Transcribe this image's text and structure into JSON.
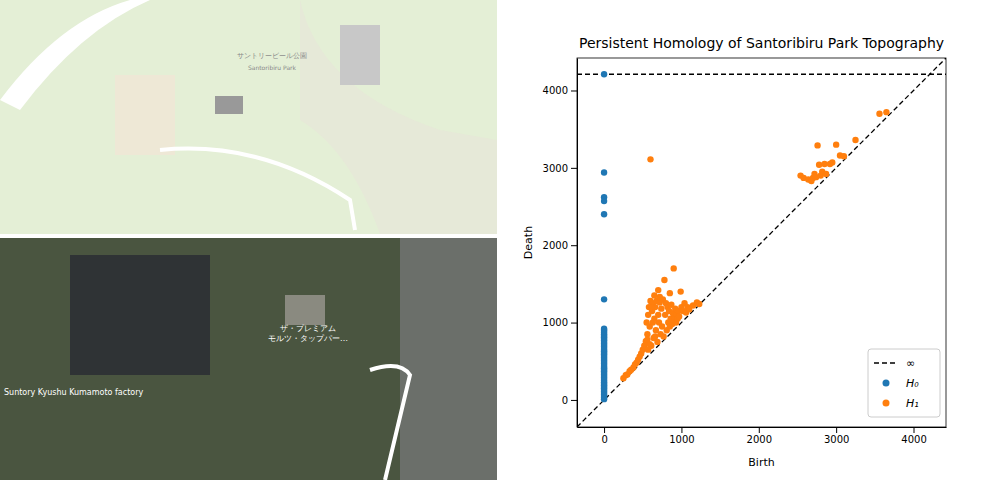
{
  "chart_data": {
    "type": "scatter",
    "title": "Persistent Homology of Santoribiru Park Topography",
    "x_label": "Birth",
    "y_label": "Death",
    "xlim": [
      -350,
      4420
    ],
    "ylim": [
      -350,
      4420
    ],
    "xticks": [
      0,
      1000,
      2000,
      3000,
      4000
    ],
    "yticks": [
      0,
      1000,
      2000,
      3000,
      4000
    ],
    "legend": "lower right",
    "series": [
      {
        "name": "∞",
        "type": "hline",
        "line_style": "dashed",
        "color": "#000000",
        "values": [
          4210
        ]
      },
      {
        "name": "H₀",
        "type": "scatter",
        "color": "#1f77b4",
        "x": [
          0,
          0,
          0,
          0,
          0,
          0,
          0,
          0,
          0,
          0,
          0,
          0,
          0,
          0,
          0,
          0,
          0,
          0,
          0,
          0,
          0,
          0,
          0,
          0,
          0,
          0,
          0,
          0,
          0,
          0,
          0,
          0,
          0,
          0,
          0,
          0,
          0,
          0,
          0,
          0,
          0,
          0,
          0,
          0,
          0,
          0,
          0,
          0,
          0,
          0,
          0,
          0,
          0
        ],
        "values": [
          4210,
          2940,
          2620,
          2570,
          2400,
          1300,
          920,
          905,
          890,
          870,
          850,
          830,
          810,
          790,
          770,
          750,
          730,
          710,
          690,
          670,
          650,
          630,
          610,
          590,
          570,
          550,
          530,
          510,
          490,
          470,
          450,
          430,
          410,
          390,
          370,
          350,
          330,
          310,
          290,
          270,
          250,
          230,
          210,
          190,
          170,
          150,
          130,
          110,
          90,
          70,
          50,
          30,
          10
        ]
      },
      {
        "name": "H₁",
        "type": "scatter",
        "color": "#ff7f0e",
        "x": [
          250,
          280,
          300,
          330,
          350,
          380,
          400,
          420,
          440,
          460,
          480,
          500,
          520,
          540,
          550,
          560,
          570,
          580,
          590,
          600,
          610,
          620,
          630,
          640,
          650,
          660,
          670,
          680,
          690,
          700,
          710,
          720,
          730,
          740,
          750,
          760,
          770,
          780,
          790,
          800,
          810,
          820,
          830,
          840,
          850,
          860,
          870,
          880,
          890,
          900,
          910,
          920,
          930,
          940,
          950,
          960,
          970,
          990,
          1000,
          1020,
          1040,
          1060,
          1080,
          1100,
          1150,
          1200,
          1230,
          600,
          700,
          850,
          650,
          720,
          610,
          630,
          560,
          590,
          570,
          660,
          2540,
          2580,
          2640,
          2680,
          2700,
          2720,
          2740,
          2760,
          2780,
          2800,
          2820,
          2850,
          2870,
          2920,
          2950,
          3000,
          3050,
          3100,
          3250,
          3560,
          3650
        ],
        "values": [
          280,
          320,
          330,
          370,
          390,
          420,
          460,
          480,
          520,
          560,
          600,
          650,
          700,
          760,
          1000,
          850,
          1100,
          1200,
          950,
          1280,
          700,
          1150,
          1250,
          800,
          1050,
          1200,
          900,
          1280,
          750,
          1100,
          1000,
          1260,
          850,
          1180,
          950,
          1300,
          820,
          1550,
          1100,
          1250,
          900,
          1200,
          1000,
          1150,
          950,
          1050,
          1230,
          980,
          1120,
          1700,
          1050,
          1180,
          1000,
          1100,
          1050,
          1150,
          1080,
          1400,
          1200,
          1150,
          1250,
          1130,
          1200,
          1170,
          1220,
          1260,
          1240,
          3110,
          1420,
          1380,
          1350,
          1330,
          1200,
          1000,
          780,
          720,
          650,
          820,
          2900,
          2870,
          2850,
          2830,
          2870,
          2920,
          2880,
          3290,
          3040,
          2900,
          2950,
          3050,
          2920,
          3050,
          3070,
          3300,
          3160,
          3150,
          3360,
          3700,
          3720
        ]
      }
    ]
  },
  "maps": {
    "street": {
      "labels": [
        "サントリービール公園",
        "Santoribiru Park"
      ]
    },
    "satellite": {
      "labels": [
        "ザ・プレミアム",
        "モルツ・タップパー…",
        "Suntory Kyushu Kumamoto factory"
      ]
    }
  }
}
